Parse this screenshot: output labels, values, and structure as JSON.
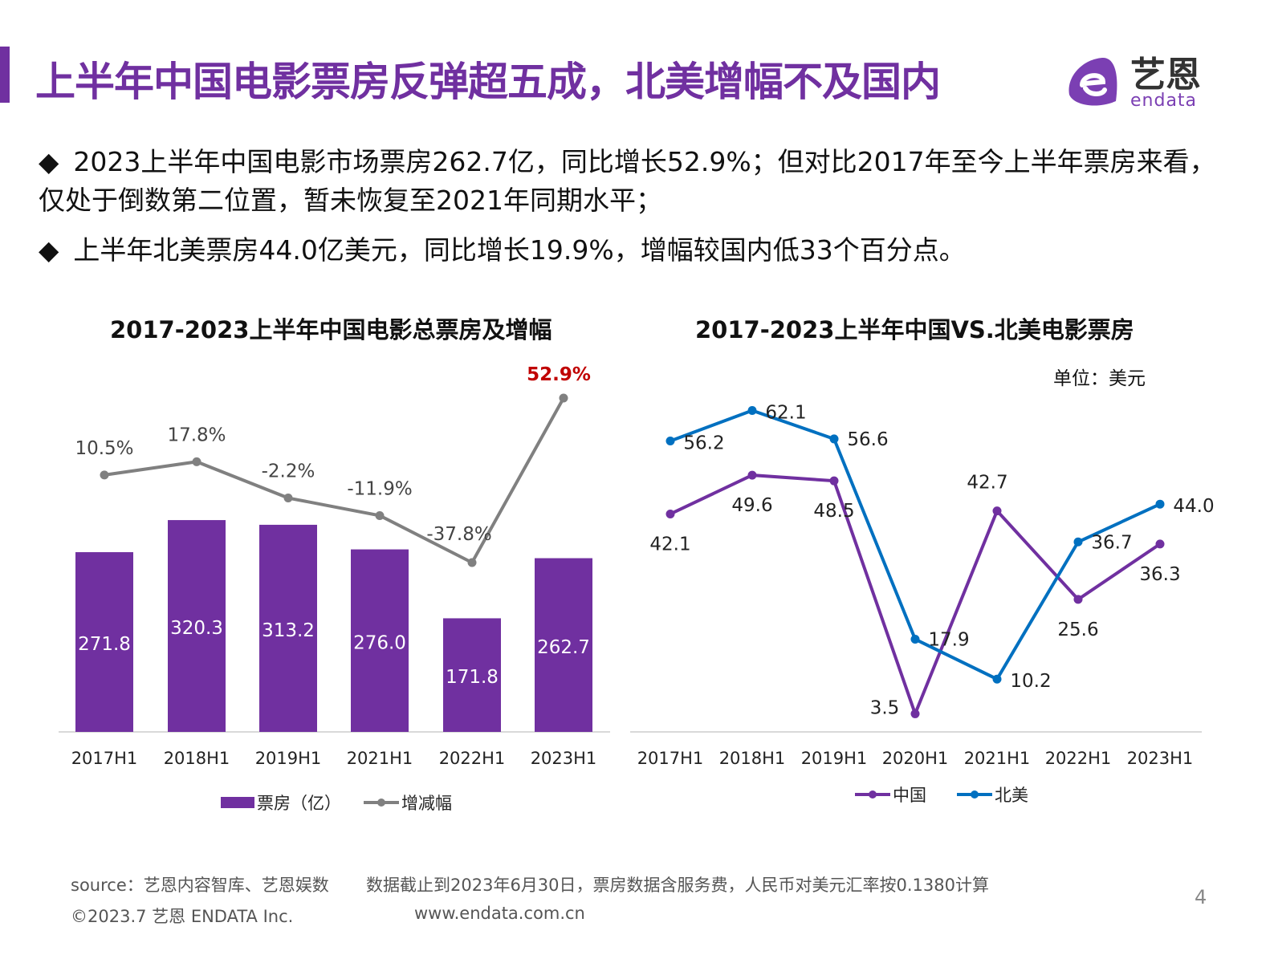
{
  "header": {
    "title": "上半年中国电影票房反弹超五成，北美增幅不及国内",
    "logo_cn": "艺恩",
    "logo_en": "endata"
  },
  "bullets": [
    "2023上半年中国电影市场票房262.7亿，同比增长52.9%；但对比2017年至今上半年票房来看，仅处于倒数第二位置，暂未恢复至2021年同期水平；",
    "上半年北美票房44.0亿美元，同比增长19.9%，增幅较国内低33个百分点。"
  ],
  "chart_data": [
    {
      "type": "bar",
      "title": "2017-2023上半年中国电影总票房及增幅",
      "categories": [
        "2017H1",
        "2018H1",
        "2019H1",
        "2021H1",
        "2022H1",
        "2023H1"
      ],
      "series": [
        {
          "name": "票房（亿）",
          "type": "bar",
          "values": [
            271.8,
            320.3,
            313.2,
            276.0,
            171.8,
            262.7
          ],
          "labels": [
            "271.8",
            "320.3",
            "313.2",
            "276.0",
            "171.8",
            "262.7"
          ],
          "color": "#7030a0"
        },
        {
          "name": "增减幅",
          "type": "line",
          "values": [
            10.5,
            17.8,
            -2.2,
            -11.9,
            -37.8,
            52.9
          ],
          "labels": [
            "10.5%",
            "17.8%",
            "-2.2%",
            "-11.9%",
            "-37.8%",
            "52.9%"
          ],
          "color": "#808080",
          "highlight_color": "#c00000"
        }
      ]
    },
    {
      "type": "line",
      "title": "2017-2023上半年中国VS.北美电影票房",
      "unit": "单位：美元",
      "categories": [
        "2017H1",
        "2018H1",
        "2019H1",
        "2020H1",
        "2021H1",
        "2022H1",
        "2023H1"
      ],
      "series": [
        {
          "name": "中国",
          "values": [
            42.1,
            49.6,
            48.5,
            3.5,
            42.7,
            25.6,
            36.3
          ],
          "labels": [
            "42.1",
            "49.6",
            "48.5",
            "3.5",
            "42.7",
            "25.6",
            "36.3"
          ],
          "color": "#7030a0"
        },
        {
          "name": "北美",
          "values": [
            56.2,
            62.1,
            56.6,
            17.9,
            10.2,
            36.7,
            44.0
          ],
          "labels": [
            "56.2",
            "62.1",
            "56.6",
            "17.9",
            "10.2",
            "36.7",
            "44.0"
          ],
          "color": "#0070c0"
        }
      ]
    }
  ],
  "footer": {
    "source": "source：艺恩内容智库、艺恩娱数",
    "note": "数据截止到2023年6月30日，票房数据含服务费，人民币对美元汇率按0.1380计算",
    "copyright": "©2023.7 艺恩 ENDATA Inc.",
    "url": "www.endata.com.cn",
    "page": "4"
  }
}
